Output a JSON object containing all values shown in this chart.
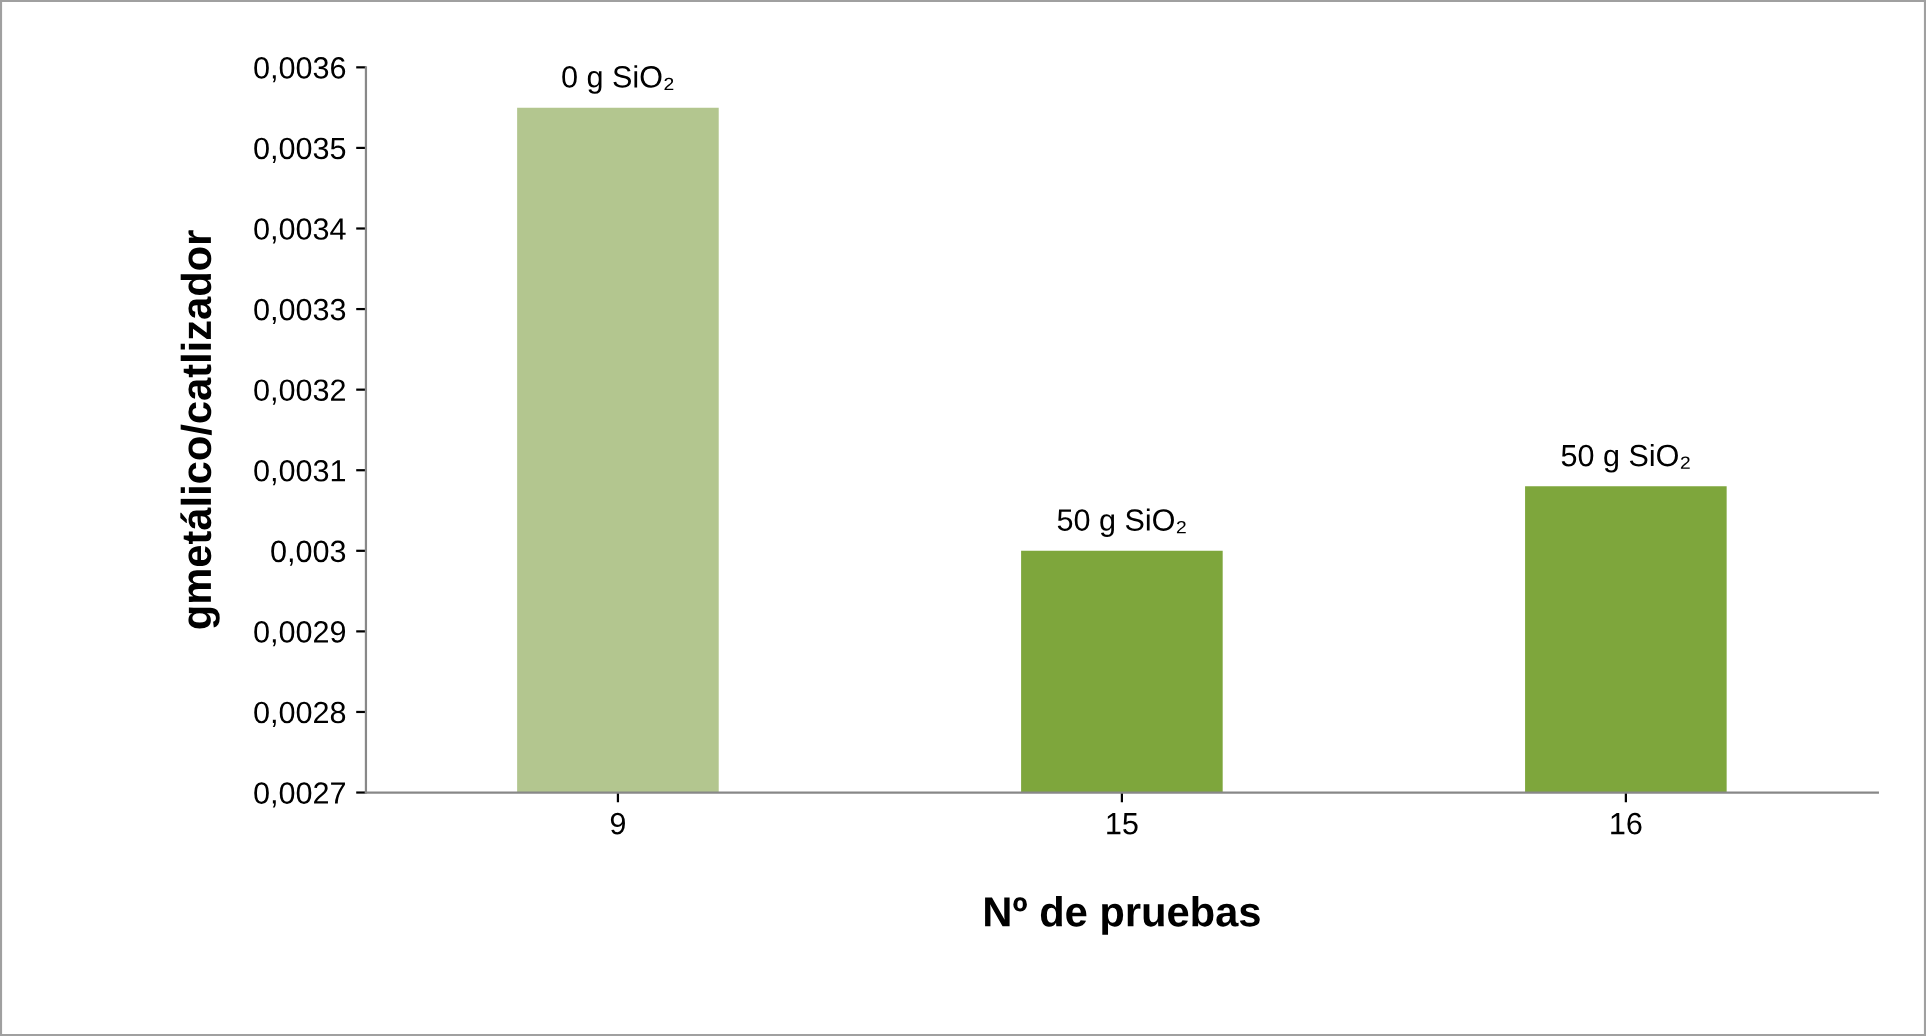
{
  "chart_data": {
    "type": "bar",
    "xlabel": "Nº de pruebas",
    "ylabel": "gmetálico/catlizador",
    "categories": [
      "9",
      "15",
      "16"
    ],
    "values": [
      0.00355,
      0.003,
      0.00308
    ],
    "colors": [
      "#b3c68f",
      "#7ea63c",
      "#7ea63c"
    ],
    "annotations": [
      {
        "text": "0 g SiO₂",
        "x": "9",
        "y": 0.00355
      },
      {
        "text": "50 g SiO₂",
        "x": "15",
        "y": 0.003
      },
      {
        "text": "50 g SiO₂",
        "x": "16",
        "y": 0.00308
      }
    ],
    "ylim": [
      0.0027,
      0.0036
    ],
    "yticks": [
      {
        "value": 0.0027,
        "label": "0,0027"
      },
      {
        "value": 0.0028,
        "label": "0,0028"
      },
      {
        "value": 0.0029,
        "label": "0,0029"
      },
      {
        "value": 0.003,
        "label": "0,003"
      },
      {
        "value": 0.0031,
        "label": "0,0031"
      },
      {
        "value": 0.0032,
        "label": "0,0032"
      },
      {
        "value": 0.0033,
        "label": "0,0033"
      },
      {
        "value": 0.0034,
        "label": "0,0034"
      },
      {
        "value": 0.0035,
        "label": "0,0035"
      },
      {
        "value": 0.0036,
        "label": "0,0036"
      }
    ],
    "grid": false,
    "legend": false
  }
}
